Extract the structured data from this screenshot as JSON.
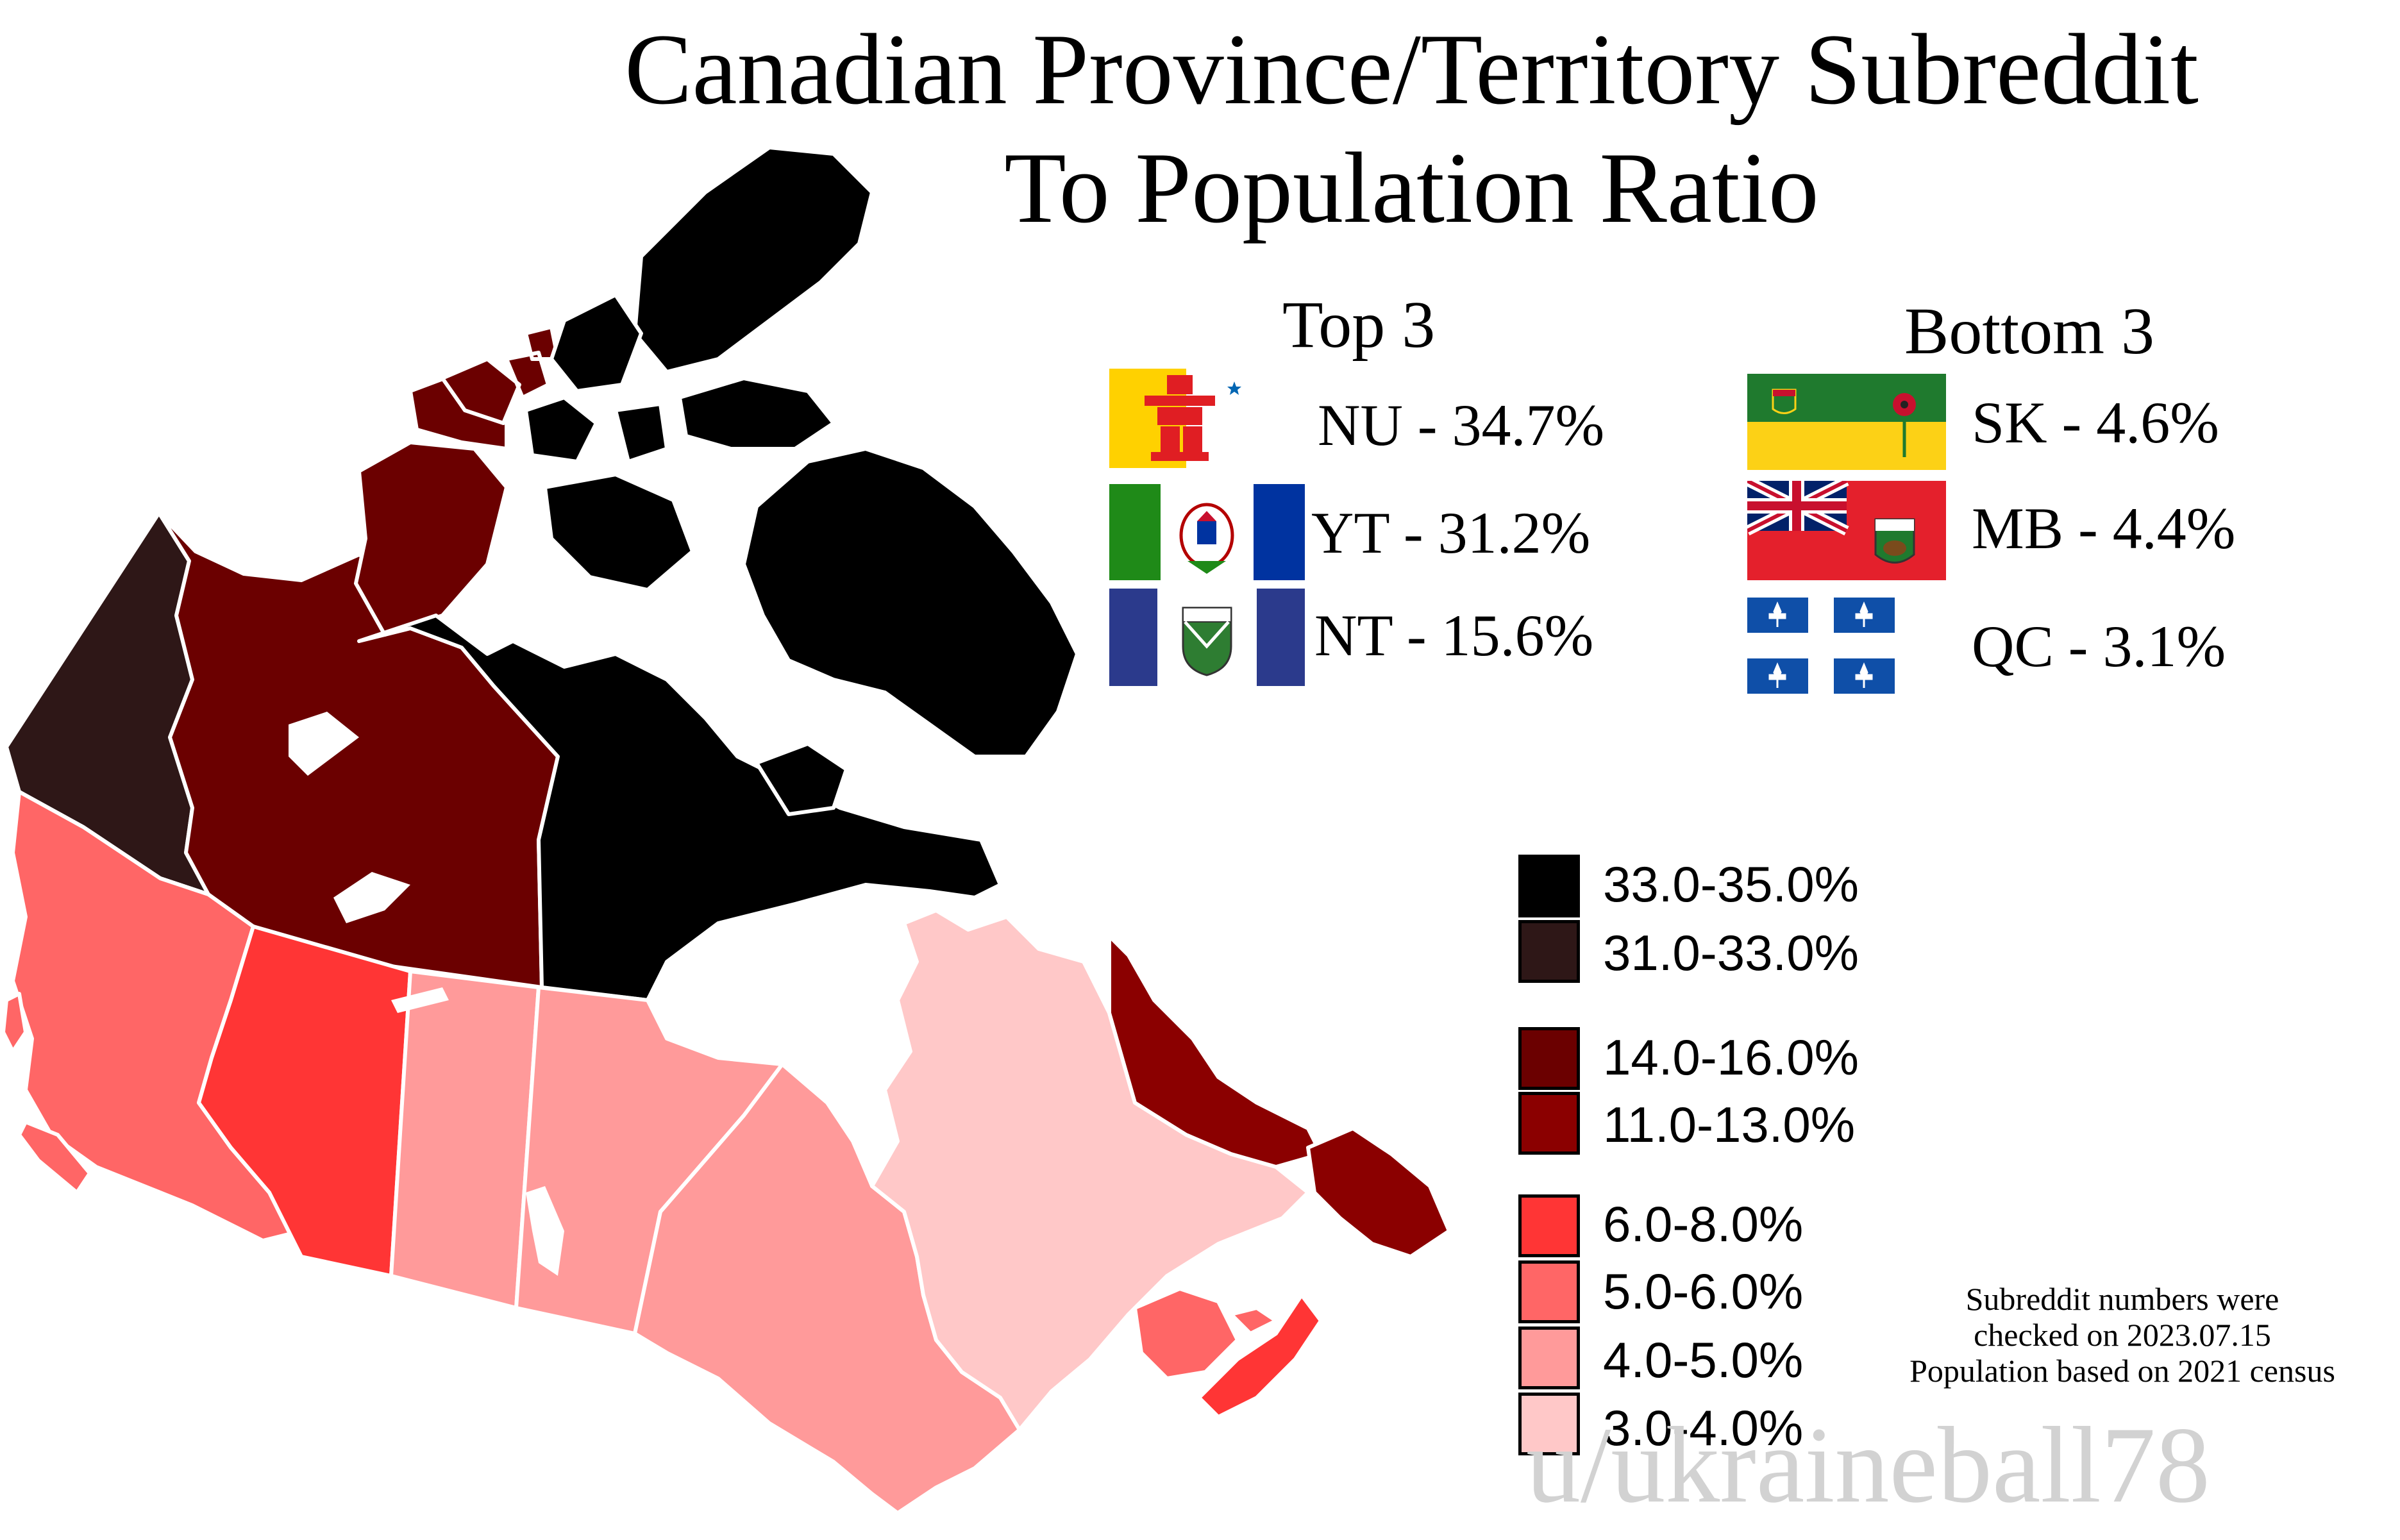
{
  "title_line1": "Canadian Province/Territory Subreddit",
  "title_line2": "To Population Ratio",
  "top3": {
    "heading": "Top 3",
    "items": [
      {
        "code": "NU",
        "label": "NU - 34.7%",
        "value_percent": 34.7,
        "flag_icon": "nunavut-flag"
      },
      {
        "code": "YT",
        "label": "YT - 31.2%",
        "value_percent": 31.2,
        "flag_icon": "yukon-flag"
      },
      {
        "code": "NT",
        "label": "NT - 15.6%",
        "value_percent": 15.6,
        "flag_icon": "northwest-territories-flag"
      }
    ]
  },
  "bottom3": {
    "heading": "Bottom 3",
    "items": [
      {
        "code": "SK",
        "label": "SK - 4.6%",
        "value_percent": 4.6,
        "flag_icon": "saskatchewan-flag"
      },
      {
        "code": "MB",
        "label": "MB - 4.4%",
        "value_percent": 4.4,
        "flag_icon": "manitoba-flag"
      },
      {
        "code": "QC",
        "label": "QC - 3.1%",
        "value_percent": 3.1,
        "flag_icon": "quebec-flag"
      }
    ]
  },
  "legend": [
    {
      "label": "33.0-35.0%",
      "color": "#000000"
    },
    {
      "label": "31.0-33.0%",
      "color": "#2e1717"
    },
    {
      "label": "14.0-16.0%",
      "color": "#6b0000"
    },
    {
      "label": "11.0-13.0%",
      "color": "#8b0000"
    },
    {
      "label": "6.0-8.0%",
      "color": "#ff3535"
    },
    {
      "label": "5.0-6.0%",
      "color": "#ff6666"
    },
    {
      "label": "4.0-5.0%",
      "color": "#ff9a9a"
    },
    {
      "label": "3.0-4.0%",
      "color": "#ffc8c8"
    }
  ],
  "note_lines": [
    "Subreddit numbers were",
    "checked on 2023.07.15",
    "Population based on 2021 census"
  ],
  "credit": "u/ukraineball78",
  "regions": [
    {
      "code": "NU",
      "color": "#000000"
    },
    {
      "code": "YT",
      "color": "#2e1717"
    },
    {
      "code": "NT",
      "color": "#6b0000"
    },
    {
      "code": "NL",
      "color": "#8b0000"
    },
    {
      "code": "AB",
      "color": "#ff3535"
    },
    {
      "code": "NS",
      "color": "#ff3535"
    },
    {
      "code": "BC",
      "color": "#ff6666"
    },
    {
      "code": "PE",
      "color": "#ff6666"
    },
    {
      "code": "NB",
      "color": "#ff6666"
    },
    {
      "code": "SK",
      "color": "#ff9a9a"
    },
    {
      "code": "MB",
      "color": "#ff9a9a"
    },
    {
      "code": "ON",
      "color": "#ff9a9a"
    },
    {
      "code": "QC",
      "color": "#ffc8c8"
    }
  ]
}
